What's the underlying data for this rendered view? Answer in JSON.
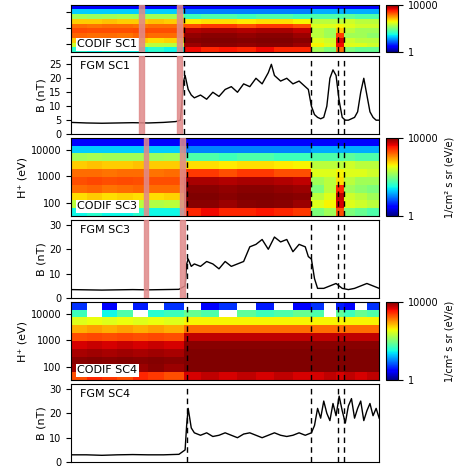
{
  "chart_data": [
    {
      "type": "spectrogram",
      "label": "CODIF SC1",
      "log": "y",
      "tick_labels": false,
      "xlim": [
        0,
        100
      ],
      "ylim": [
        30,
        30000
      ],
      "yticks": [
        100,
        1000,
        10000
      ],
      "x_edges": [
        0,
        5,
        10,
        15,
        20,
        25,
        30,
        36.5,
        42,
        48,
        54,
        60,
        66,
        72,
        78,
        82,
        86,
        88.5,
        92,
        96,
        100
      ],
      "y_edges": [
        30,
        60,
        120,
        240,
        480,
        960,
        1900,
        3800,
        7600,
        15000,
        30000
      ],
      "flux": [
        [
          40,
          30,
          40,
          30,
          30,
          40,
          30,
          4000,
          3000,
          3500,
          3000,
          4000,
          3000,
          3000,
          150,
          100,
          1500,
          100,
          80,
          80
        ],
        [
          250,
          200,
          220,
          200,
          250,
          200,
          200,
          8000,
          9000,
          9000,
          8500,
          9000,
          9000,
          8000,
          400,
          300,
          4000,
          300,
          300,
          250
        ],
        [
          600,
          500,
          550,
          500,
          600,
          500,
          550,
          9500,
          10000,
          10000,
          9500,
          10000,
          10000,
          9000,
          300,
          250,
          5000,
          250,
          200,
          200
        ],
        [
          1600,
          1500,
          1500,
          1400,
          1600,
          1500,
          1500,
          8500,
          9000,
          9000,
          8500,
          9000,
          9000,
          8000,
          200,
          150,
          2500,
          150,
          150,
          120
        ],
        [
          2100,
          2000,
          2000,
          2000,
          2100,
          2000,
          2000,
          6500,
          7000,
          7000,
          6500,
          7000,
          7000,
          6000,
          200,
          150,
          600,
          200,
          150,
          150
        ],
        [
          1500,
          1400,
          1500,
          1500,
          1400,
          1500,
          1500,
          2000,
          2500,
          2500,
          2000,
          2500,
          2500,
          2000,
          300,
          300,
          400,
          300,
          250,
          250
        ],
        [
          600,
          600,
          650,
          600,
          600,
          650,
          600,
          450,
          500,
          500,
          450,
          500,
          500,
          400,
          200,
          200,
          200,
          250,
          200,
          200
        ],
        [
          150,
          140,
          150,
          160,
          150,
          150,
          150,
          50,
          60,
          60,
          50,
          60,
          60,
          50,
          60,
          60,
          60,
          70,
          60,
          60
        ],
        [
          20,
          20,
          20,
          20,
          20,
          20,
          20,
          10,
          10,
          10,
          10,
          10,
          10,
          10,
          15,
          15,
          15,
          15,
          15,
          15
        ],
        [
          3,
          3,
          3,
          3,
          3,
          3,
          3,
          3,
          3,
          3,
          3,
          3,
          3,
          3,
          3,
          3,
          3,
          3,
          3,
          3
        ]
      ],
      "colorbar": {
        "range": [
          1,
          10000
        ],
        "ticks": [
          1,
          10000
        ]
      },
      "dashed_lines": [
        36.5,
        78,
        86.5,
        88.5
      ],
      "shaded_intervals": [
        [
          22,
          23.5
        ],
        [
          34.5,
          36
        ]
      ]
    },
    {
      "type": "line",
      "label": "FGM SC1",
      "ylabel": "B (nT)",
      "color": "#000000",
      "tick_labels": "y",
      "xlim": [
        0,
        100
      ],
      "ylim": [
        0,
        28
      ],
      "yticks": [
        0,
        5,
        10,
        15,
        20,
        25
      ],
      "x": [
        0,
        5,
        10,
        15,
        20,
        25,
        30,
        34,
        35.5,
        36,
        36.5,
        37,
        38,
        39,
        40,
        42,
        44,
        46,
        48,
        50,
        52,
        54,
        56,
        58,
        60,
        62,
        64,
        65,
        66,
        68,
        70,
        72,
        74,
        76,
        77,
        78,
        79,
        80,
        81,
        82,
        83,
        84,
        85,
        86,
        87,
        88,
        89,
        90,
        91,
        92,
        93,
        94,
        95,
        96,
        97,
        98,
        99,
        100
      ],
      "values": [
        4.2,
        4.0,
        3.9,
        4.0,
        4.1,
        4.0,
        4.2,
        4.5,
        5.0,
        12,
        19,
        21,
        16,
        14,
        13,
        14,
        12.5,
        15,
        13.5,
        16,
        17,
        15,
        18,
        17,
        20,
        18,
        22,
        25,
        21,
        19,
        20,
        18,
        19,
        17,
        16,
        10,
        7,
        6,
        5.5,
        6,
        10,
        20,
        23,
        21,
        12,
        6,
        5,
        5,
        5.5,
        6,
        8,
        15,
        20,
        14,
        8,
        6,
        5,
        5
      ],
      "dashed_lines": [
        36.5,
        78,
        86.5,
        88.5
      ],
      "shaded_intervals": [
        [
          22,
          23.5
        ],
        [
          34.5,
          36
        ]
      ]
    },
    {
      "type": "spectrogram",
      "label": "CODIF SC3",
      "ylabel": "H⁺ (eV)",
      "log": "y",
      "tick_labels": "y",
      "xlim": [
        0,
        100
      ],
      "ylim": [
        30,
        30000
      ],
      "yticks": [
        100,
        1000,
        10000
      ],
      "x_edges": [
        0,
        5,
        10,
        15,
        20,
        25,
        30,
        36.5,
        42,
        48,
        54,
        60,
        66,
        72,
        78,
        82,
        86,
        88.5,
        92,
        96,
        100
      ],
      "y_edges": [
        30,
        60,
        120,
        240,
        480,
        960,
        1900,
        3800,
        7600,
        15000,
        30000
      ],
      "flux": [
        [
          30,
          40,
          30,
          30,
          40,
          30,
          30,
          3000,
          4000,
          3000,
          3000,
          3500,
          3000,
          2500,
          100,
          150,
          2000,
          100,
          80,
          60
        ],
        [
          200,
          250,
          200,
          220,
          200,
          180,
          200,
          9000,
          9000,
          8000,
          9000,
          9500,
          9000,
          8000,
          300,
          400,
          5000,
          300,
          250,
          200
        ],
        [
          500,
          600,
          500,
          550,
          500,
          500,
          550,
          10000,
          10000,
          9000,
          10000,
          10000,
          9500,
          9000,
          200,
          300,
          6000,
          250,
          200,
          150
        ],
        [
          1500,
          1600,
          1400,
          1500,
          1600,
          1500,
          1500,
          9000,
          9000,
          8500,
          9000,
          9000,
          8500,
          8000,
          100,
          200,
          3000,
          150,
          120,
          100
        ],
        [
          2000,
          2200,
          2000,
          2100,
          2000,
          2000,
          2000,
          7000,
          7000,
          6500,
          7000,
          7000,
          6500,
          6000,
          150,
          200,
          500,
          200,
          150,
          150
        ],
        [
          1500,
          1500,
          1400,
          1500,
          1500,
          1400,
          1500,
          2500,
          2500,
          2000,
          2500,
          2500,
          2000,
          2000,
          300,
          300,
          400,
          300,
          300,
          250
        ],
        [
          600,
          650,
          600,
          600,
          650,
          600,
          600,
          500,
          500,
          450,
          500,
          500,
          450,
          400,
          200,
          200,
          200,
          250,
          200,
          200
        ],
        [
          150,
          160,
          150,
          150,
          150,
          140,
          150,
          60,
          60,
          50,
          60,
          60,
          50,
          50,
          60,
          60,
          60,
          70,
          60,
          60
        ],
        [
          20,
          20,
          20,
          20,
          20,
          20,
          20,
          10,
          10,
          10,
          10,
          10,
          10,
          10,
          15,
          15,
          15,
          15,
          15,
          15
        ],
        [
          3,
          3,
          3,
          3,
          3,
          3,
          3,
          3,
          3,
          3,
          3,
          3,
          3,
          3,
          3,
          3,
          3,
          3,
          3,
          3
        ]
      ],
      "colorbar": {
        "range": [
          1,
          10000
        ],
        "ticks": [
          1,
          10000
        ],
        "label": "1/cm² s sr (eV/e)"
      },
      "dashed_lines": [
        37.5,
        78,
        86.5,
        88.5
      ],
      "shaded_intervals": [
        [
          23.5,
          25
        ],
        [
          35.5,
          37
        ]
      ]
    },
    {
      "type": "line",
      "label": "FGM SC3",
      "ylabel": "B (nT)",
      "color": "#000000",
      "tick_labels": "y",
      "xlim": [
        0,
        100
      ],
      "ylim": [
        0,
        32
      ],
      "yticks": [
        0,
        10,
        20,
        30
      ],
      "x": [
        0,
        5,
        10,
        15,
        20,
        25,
        30,
        35,
        37,
        37.5,
        38,
        39,
        40,
        42,
        44,
        46,
        48,
        50,
        52,
        54,
        56,
        57,
        58,
        60,
        62,
        64,
        66,
        68,
        70,
        72,
        74,
        76,
        77,
        78,
        79,
        80,
        82,
        84,
        86,
        88,
        90,
        92,
        94,
        96,
        98,
        100
      ],
      "values": [
        3.5,
        3.4,
        3.3,
        3.4,
        3.5,
        3.4,
        3.5,
        3.6,
        5,
        14,
        16,
        13,
        14,
        13,
        15,
        14,
        12,
        15,
        13,
        14,
        15,
        18,
        21,
        22,
        24,
        20,
        25,
        23,
        24,
        19,
        22,
        21,
        17,
        16,
        8,
        4,
        4,
        5,
        6,
        4,
        3.5,
        4,
        5,
        6,
        5,
        4
      ],
      "dashed_lines": [
        37.5,
        78,
        86.5,
        88.5
      ],
      "shaded_intervals": [
        [
          23.5,
          25
        ],
        [
          35.5,
          37
        ]
      ]
    },
    {
      "type": "spectrogram",
      "label": "CODIF SC4",
      "ylabel": "H⁺ (eV)",
      "log": "y",
      "tick_labels": "y",
      "xlim": [
        0,
        100
      ],
      "ylim": [
        30,
        30000
      ],
      "yticks": [
        100,
        1000,
        10000
      ],
      "x_edges": [
        0,
        5,
        10,
        15,
        20,
        25,
        30,
        36.5,
        42,
        48,
        54,
        60,
        66,
        72,
        78,
        82,
        86,
        88.5,
        92,
        96,
        100
      ],
      "y_edges": [
        30,
        60,
        120,
        240,
        480,
        960,
        1900,
        3800,
        7600,
        15000,
        30000
      ],
      "flux": [
        [
          2000,
          3000,
          2500,
          2000,
          3000,
          2500,
          2000,
          5000,
          6000,
          5000,
          6000,
          5000,
          6000,
          5000,
          5000,
          6000,
          5000,
          6000,
          5000,
          6000
        ],
        [
          8000,
          9000,
          8000,
          9000,
          8000,
          9000,
          8000,
          10000,
          10000,
          10000,
          10000,
          10000,
          10000,
          10000,
          10000,
          10000,
          10000,
          10000,
          10000,
          10000
        ],
        [
          9000,
          9500,
          9000,
          9500,
          9000,
          9500,
          9000,
          10000,
          10000,
          10000,
          10000,
          10000,
          10000,
          10000,
          10000,
          10000,
          10000,
          10000,
          10000,
          10000
        ],
        [
          7000,
          7500,
          7000,
          7500,
          7000,
          7500,
          7000,
          10000,
          10000,
          10000,
          10000,
          10000,
          10000,
          10000,
          10000,
          10000,
          10000,
          10000,
          10000,
          10000
        ],
        [
          5000,
          5500,
          5000,
          5500,
          5000,
          5500,
          5000,
          9000,
          9000,
          9000,
          9000,
          9000,
          9000,
          9000,
          9000,
          9000,
          9000,
          9000,
          9000,
          9000
        ],
        [
          2000,
          2200,
          2000,
          2200,
          2000,
          2200,
          2000,
          6000,
          6000,
          6000,
          6000,
          6000,
          6000,
          6000,
          6000,
          6000,
          6000,
          6000,
          6000,
          6000
        ],
        [
          800,
          900,
          800,
          900,
          800,
          900,
          800,
          1500,
          1500,
          1500,
          1500,
          1500,
          1500,
          1500,
          1500,
          1500,
          1500,
          1500,
          1500,
          1500
        ],
        [
          300,
          350,
          300,
          350,
          300,
          350,
          300,
          400,
          400,
          400,
          400,
          400,
          400,
          400,
          400,
          400,
          400,
          400,
          400,
          400
        ],
        [
          50,
          null,
          30,
          60,
          null,
          40,
          50,
          80,
          60,
          null,
          70,
          50,
          60,
          80,
          60,
          null,
          70,
          50,
          80,
          60
        ],
        [
          5,
          null,
          3,
          null,
          4,
          null,
          5,
          null,
          3,
          5,
          null,
          4,
          null,
          3,
          5,
          null,
          4,
          3,
          null,
          5
        ]
      ],
      "colorbar": {
        "range": [
          1,
          10000
        ],
        "ticks": [
          1,
          10000
        ],
        "label": "1/cm² s sr (eV/e)"
      },
      "dashed_lines": [
        37.5,
        78,
        86.5,
        88.5
      ]
    },
    {
      "type": "line",
      "label": "FGM SC4",
      "ylabel": "B (nT)",
      "color": "#000000",
      "tick_labels": "y",
      "xlim": [
        0,
        100
      ],
      "ylim": [
        0,
        32
      ],
      "yticks": [
        0,
        10,
        20,
        30
      ],
      "x": [
        0,
        5,
        10,
        15,
        20,
        25,
        30,
        35,
        37,
        37.5,
        38,
        38.5,
        39,
        40,
        42,
        44,
        46,
        48,
        50,
        52,
        54,
        56,
        58,
        60,
        62,
        64,
        66,
        68,
        70,
        72,
        74,
        76,
        78,
        79,
        80,
        81,
        82,
        83,
        84,
        85,
        86,
        87,
        88,
        89,
        90,
        91,
        92,
        93,
        94,
        95,
        96,
        97,
        98,
        99,
        100
      ],
      "values": [
        3,
        3,
        2.8,
        3,
        3.1,
        3,
        3,
        3.2,
        5,
        15,
        22,
        18,
        14,
        12,
        11,
        12,
        10.5,
        11,
        12,
        11,
        10,
        11.5,
        12,
        11,
        10,
        11,
        12,
        11,
        10.5,
        11,
        12,
        11,
        12,
        15,
        22,
        18,
        25,
        20,
        17,
        24,
        19,
        27,
        21,
        16,
        23,
        26,
        18,
        22,
        25,
        17,
        21,
        24,
        19,
        22,
        18
      ],
      "dashed_lines": [
        37.5,
        78,
        86.5,
        88.5
      ]
    }
  ]
}
